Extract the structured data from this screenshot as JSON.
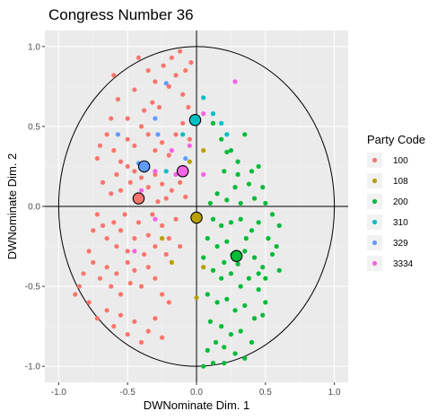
{
  "chart_data": {
    "type": "scatter",
    "title": "Congress Number  36",
    "xlabel": "DWNominate Dim. 1",
    "ylabel": "DWNominate Dim. 2",
    "xlim": [
      -1.1,
      1.1
    ],
    "ylim": [
      -1.1,
      1.1
    ],
    "x_ticks": [
      -1.0,
      -0.5,
      0.0,
      0.5,
      1.0
    ],
    "y_ticks": [
      -1.0,
      -0.5,
      0.0,
      0.5,
      1.0
    ],
    "x_tick_labels": [
      "-1.0",
      "-0.5",
      "0.0",
      "0.5",
      "1.0"
    ],
    "y_tick_labels": [
      "-1.0",
      "-0.5",
      "0.0",
      "0.5",
      "1.0"
    ],
    "grid": true,
    "panel_background": "#ebebeb",
    "reference_lines": {
      "x": 0,
      "y": 0
    },
    "unit_circle": {
      "center": [
        0,
        0
      ],
      "radius": 1
    },
    "legend": {
      "title": "Party Code",
      "placement": "right",
      "entries": [
        {
          "code": "100",
          "color": "#F8766D"
        },
        {
          "code": "108",
          "color": "#B79F00"
        },
        {
          "code": "200",
          "color": "#00BA38"
        },
        {
          "code": "310",
          "color": "#00BFC4"
        },
        {
          "code": "329",
          "color": "#619CFF"
        },
        {
          "code": "3334",
          "color": "#F564E3"
        }
      ]
    },
    "party_means": [
      {
        "party": "100",
        "x": -0.42,
        "y": 0.05
      },
      {
        "party": "108",
        "x": 0.0,
        "y": -0.07
      },
      {
        "party": "200",
        "x": 0.29,
        "y": -0.31
      },
      {
        "party": "310",
        "x": -0.01,
        "y": 0.54
      },
      {
        "party": "329",
        "x": -0.38,
        "y": 0.25
      },
      {
        "party": "3334",
        "x": -0.1,
        "y": 0.22
      }
    ],
    "series": [
      {
        "party": "100",
        "points": [
          [
            -0.6,
            0.82
          ],
          [
            -0.57,
            0.67
          ],
          [
            -0.5,
            0.55
          ],
          [
            -0.45,
            0.73
          ],
          [
            -0.42,
            0.93
          ],
          [
            -0.35,
            0.85
          ],
          [
            -0.3,
            0.78
          ],
          [
            -0.27,
            0.62
          ],
          [
            -0.24,
            0.88
          ],
          [
            -0.2,
            0.75
          ],
          [
            -0.18,
            0.93
          ],
          [
            -0.15,
            0.82
          ],
          [
            -0.12,
            0.97
          ],
          [
            -0.08,
            0.85
          ],
          [
            -0.04,
            0.9
          ],
          [
            -0.1,
            0.7
          ],
          [
            -0.06,
            0.62
          ],
          [
            -0.65,
            0.45
          ],
          [
            -0.6,
            0.35
          ],
          [
            -0.55,
            0.28
          ],
          [
            -0.5,
            0.42
          ],
          [
            -0.45,
            0.38
          ],
          [
            -0.4,
            0.5
          ],
          [
            -0.35,
            0.45
          ],
          [
            -0.3,
            0.35
          ],
          [
            -0.25,
            0.4
          ],
          [
            -0.2,
            0.32
          ],
          [
            -0.15,
            0.45
          ],
          [
            -0.1,
            0.52
          ],
          [
            -0.05,
            0.42
          ],
          [
            -0.68,
            0.15
          ],
          [
            -0.62,
            0.08
          ],
          [
            -0.58,
            0.2
          ],
          [
            -0.55,
            0.1
          ],
          [
            -0.5,
            0.25
          ],
          [
            -0.48,
            0.15
          ],
          [
            -0.45,
            0.22
          ],
          [
            -0.4,
            0.18
          ],
          [
            -0.35,
            0.12
          ],
          [
            -0.3,
            0.2
          ],
          [
            -0.25,
            0.14
          ],
          [
            -0.22,
            0.05
          ],
          [
            -0.28,
            0.03
          ],
          [
            -0.18,
            0.1
          ],
          [
            -0.12,
            0.15
          ],
          [
            -0.08,
            0.06
          ],
          [
            -0.72,
            -0.05
          ],
          [
            -0.68,
            -0.12
          ],
          [
            -0.65,
            -0.2
          ],
          [
            -0.6,
            -0.1
          ],
          [
            -0.58,
            -0.25
          ],
          [
            -0.55,
            -0.15
          ],
          [
            -0.52,
            -0.05
          ],
          [
            -0.5,
            -0.28
          ],
          [
            -0.45,
            -0.2
          ],
          [
            -0.42,
            -0.1
          ],
          [
            -0.38,
            -0.3
          ],
          [
            -0.35,
            -0.18
          ],
          [
            -0.32,
            -0.05
          ],
          [
            -0.3,
            -0.25
          ],
          [
            -0.25,
            -0.12
          ],
          [
            -0.22,
            -0.3
          ],
          [
            -0.2,
            -0.2
          ],
          [
            -0.15,
            -0.08
          ],
          [
            -0.12,
            -0.25
          ],
          [
            -0.75,
            -0.35
          ],
          [
            -0.7,
            -0.45
          ],
          [
            -0.65,
            -0.38
          ],
          [
            -0.62,
            -0.5
          ],
          [
            -0.58,
            -0.42
          ],
          [
            -0.55,
            -0.55
          ],
          [
            -0.5,
            -0.35
          ],
          [
            -0.48,
            -0.48
          ],
          [
            -0.45,
            -0.4
          ],
          [
            -0.4,
            -0.5
          ],
          [
            -0.35,
            -0.38
          ],
          [
            -0.3,
            -0.45
          ],
          [
            -0.25,
            -0.55
          ],
          [
            -0.78,
            -0.6
          ],
          [
            -0.72,
            -0.7
          ],
          [
            -0.65,
            -0.65
          ],
          [
            -0.6,
            -0.75
          ],
          [
            -0.55,
            -0.68
          ],
          [
            -0.5,
            -0.8
          ],
          [
            -0.45,
            -0.72
          ],
          [
            -0.4,
            -0.85
          ],
          [
            -0.35,
            -0.78
          ],
          [
            -0.3,
            -0.7
          ],
          [
            -0.25,
            -0.82
          ],
          [
            -0.2,
            -0.6
          ],
          [
            -0.85,
            -0.5
          ],
          [
            -0.82,
            -0.42
          ],
          [
            -0.88,
            -0.55
          ],
          [
            -0.78,
            -0.28
          ],
          [
            -0.75,
            -0.15
          ],
          [
            -0.72,
            0.3
          ],
          [
            -0.7,
            0.38
          ],
          [
            -0.62,
            0.55
          ],
          [
            -0.38,
            0.6
          ],
          [
            -0.32,
            0.65
          ]
        ]
      },
      {
        "party": "108",
        "points": [
          [
            -0.25,
            -0.2
          ],
          [
            -0.18,
            -0.35
          ],
          [
            0.0,
            -0.57
          ],
          [
            0.05,
            -0.38
          ],
          [
            0.05,
            0.35
          ],
          [
            -0.05,
            0.28
          ]
        ]
      },
      {
        "party": "200",
        "points": [
          [
            0.12,
            0.52
          ],
          [
            0.18,
            0.42
          ],
          [
            0.22,
            0.34
          ],
          [
            0.3,
            0.28
          ],
          [
            0.35,
            0.45
          ],
          [
            0.4,
            0.22
          ],
          [
            0.38,
            0.14
          ],
          [
            0.45,
            0.25
          ],
          [
            0.48,
            0.12
          ],
          [
            0.28,
            0.12
          ],
          [
            0.2,
            0.22
          ],
          [
            0.15,
            0.08
          ],
          [
            0.1,
            0.02
          ],
          [
            0.22,
            0.04
          ],
          [
            0.32,
            0.02
          ],
          [
            0.42,
            0.05
          ],
          [
            0.5,
            0.02
          ],
          [
            0.55,
            -0.05
          ],
          [
            0.6,
            -0.12
          ],
          [
            0.12,
            -0.08
          ],
          [
            0.18,
            -0.12
          ],
          [
            0.25,
            -0.1
          ],
          [
            0.32,
            -0.08
          ],
          [
            0.4,
            -0.15
          ],
          [
            0.45,
            -0.1
          ],
          [
            0.52,
            -0.2
          ],
          [
            0.58,
            -0.25
          ],
          [
            0.08,
            -0.2
          ],
          [
            0.15,
            -0.25
          ],
          [
            0.22,
            -0.22
          ],
          [
            0.35,
            -0.28
          ],
          [
            0.42,
            -0.32
          ],
          [
            0.48,
            -0.38
          ],
          [
            0.55,
            -0.3
          ],
          [
            0.6,
            -0.4
          ],
          [
            0.05,
            -0.32
          ],
          [
            0.12,
            -0.4
          ],
          [
            0.18,
            -0.45
          ],
          [
            0.25,
            -0.42
          ],
          [
            0.32,
            -0.5
          ],
          [
            0.38,
            -0.45
          ],
          [
            0.45,
            -0.52
          ],
          [
            0.5,
            -0.6
          ],
          [
            0.08,
            -0.55
          ],
          [
            0.15,
            -0.6
          ],
          [
            0.22,
            -0.58
          ],
          [
            0.28,
            -0.65
          ],
          [
            0.35,
            -0.62
          ],
          [
            0.42,
            -0.7
          ],
          [
            0.48,
            -0.68
          ],
          [
            0.1,
            -0.72
          ],
          [
            0.18,
            -0.75
          ],
          [
            0.25,
            -0.8
          ],
          [
            0.32,
            -0.78
          ],
          [
            0.4,
            -0.85
          ],
          [
            0.2,
            -0.88
          ],
          [
            0.28,
            -0.92
          ],
          [
            0.35,
            -0.95
          ],
          [
            0.12,
            -0.98
          ],
          [
            0.2,
            -0.98
          ],
          [
            0.05,
            -1.0
          ],
          [
            0.08,
            -0.9
          ],
          [
            0.14,
            -0.85
          ],
          [
            0.3,
            -0.36
          ],
          [
            0.36,
            -0.2
          ],
          [
            0.2,
            -0.35
          ],
          [
            0.26,
            -0.3
          ],
          [
            0.45,
            -0.42
          ],
          [
            0.5,
            -0.45
          ],
          [
            0.3,
            0.2
          ],
          [
            0.25,
            0.35
          ]
        ]
      },
      {
        "party": "310",
        "points": [
          [
            0.05,
            0.68
          ],
          [
            0.12,
            0.58
          ],
          [
            0.18,
            0.52
          ],
          [
            0.22,
            0.45
          ],
          [
            -0.1,
            0.45
          ],
          [
            -0.22,
            0.22
          ]
        ]
      },
      {
        "party": "329",
        "points": [
          [
            -0.22,
            0.77
          ],
          [
            -0.57,
            0.45
          ],
          [
            -0.28,
            0.45
          ],
          [
            -0.3,
            0.55
          ],
          [
            -0.42,
            0.27
          ],
          [
            -0.08,
            0.3
          ]
        ]
      },
      {
        "party": "3334",
        "points": [
          [
            0.28,
            0.78
          ],
          [
            0.05,
            0.58
          ],
          [
            -0.05,
            0.38
          ],
          [
            -0.18,
            0.35
          ],
          [
            -0.3,
            0.22
          ],
          [
            -0.4,
            0.1
          ],
          [
            -0.45,
            -0.28
          ],
          [
            -0.3,
            -0.08
          ],
          [
            -0.15,
            0.2
          ],
          [
            0.05,
            0.2
          ]
        ]
      }
    ]
  }
}
